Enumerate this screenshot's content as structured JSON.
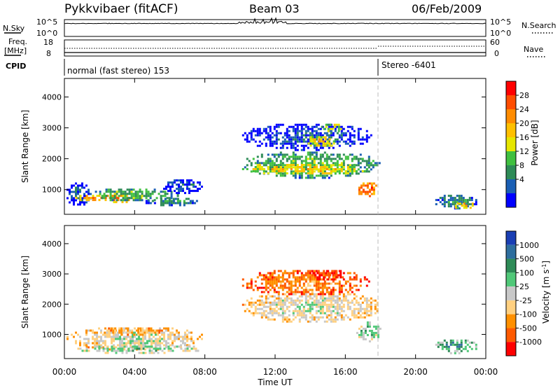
{
  "header": {
    "site": "Pykkvibaer (fitACF)",
    "beam": "Beam 03",
    "date": "06/Feb/2009"
  },
  "top_panels": {
    "nsky_label": "N.Sky",
    "nsky_ticks": [
      "10^5",
      "10^0"
    ],
    "nsearch_label": "N.Search",
    "nsearch_ticks": [
      "10^5",
      "10^0"
    ],
    "freq_label": "Freq.",
    "freq_unit": "[MHz]",
    "freq_ticks": [
      "18",
      "8"
    ],
    "nave_label": "Nave",
    "nave_ticks": [
      "60",
      "0"
    ],
    "cpid_label": "CPID",
    "cpid_mode_1": "normal (fast stereo) 153",
    "cpid_mode_2": "Stereo -6401"
  },
  "x_axis": {
    "label": "Time UT",
    "ticks": [
      "00:00",
      "04:00",
      "08:00",
      "12:00",
      "16:00",
      "20:00",
      "00:00"
    ]
  },
  "power_colorbar": {
    "label": "Power [dB]",
    "ticks": [
      "28",
      "24",
      "20",
      "16",
      "12",
      "8",
      "4"
    ],
    "colors": [
      "#ff0000",
      "#ff4d00",
      "#ff8c00",
      "#ffc000",
      "#e6e600",
      "#40c040",
      "#2e8b57",
      "#1a5fb4",
      "#0000ff"
    ]
  },
  "velocity_colorbar": {
    "label": "Velocity [m s",
    "label_sup": "-1",
    "label_end": "]",
    "ticks": [
      "1000",
      "500",
      "100",
      "25",
      "-25",
      "-100",
      "-500",
      "-1000"
    ],
    "colors": [
      "#1a3fb4",
      "#2e6e9e",
      "#2e8b57",
      "#50c878",
      "#c8c8c8",
      "#ffd080",
      "#ff9000",
      "#ff5a00",
      "#ff0000"
    ]
  },
  "chart_data": [
    {
      "type": "heatmap",
      "title": "Power",
      "xlabel": "Time UT",
      "ylabel": "Slant Range [km]",
      "xlim": [
        0,
        24
      ],
      "ylim": [
        200,
        4600
      ],
      "y_ticks": [
        "4000",
        "3000",
        "2000",
        "1000"
      ],
      "y_tick_values": [
        4000,
        3000,
        2000,
        1000
      ],
      "x_ticks": [
        0,
        4,
        8,
        12,
        16,
        20,
        24
      ],
      "regions": [
        {
          "t0": 0.0,
          "t1": 1.5,
          "r0": 500,
          "r1": 1300,
          "level": 7
        },
        {
          "t0": 0.5,
          "t1": 4.5,
          "r0": 600,
          "r1": 900,
          "level": 2
        },
        {
          "t0": 1.5,
          "t1": 6.5,
          "r0": 650,
          "r1": 1100,
          "level": 5
        },
        {
          "t0": 4.5,
          "t1": 7.5,
          "r0": 500,
          "r1": 800,
          "level": 6
        },
        {
          "t0": 5.5,
          "t1": 8.0,
          "r0": 900,
          "r1": 1400,
          "level": 7
        },
        {
          "t0": 10.0,
          "t1": 18.0,
          "r0": 1400,
          "r1": 2300,
          "level": 5
        },
        {
          "t0": 10.0,
          "t1": 17.5,
          "r0": 1500,
          "r1": 1900,
          "level": 3
        },
        {
          "t0": 10.0,
          "t1": 17.5,
          "r0": 2300,
          "r1": 3200,
          "level": 7
        },
        {
          "t0": 13.5,
          "t1": 15.5,
          "r0": 2400,
          "r1": 2800,
          "level": 3
        },
        {
          "t0": 14.5,
          "t1": 16.0,
          "r0": 2900,
          "r1": 3200,
          "level": 4
        },
        {
          "t0": 16.5,
          "t1": 17.8,
          "r0": 800,
          "r1": 1300,
          "level": 1
        },
        {
          "t0": 21.0,
          "t1": 23.5,
          "r0": 400,
          "r1": 900,
          "level": 6
        },
        {
          "t0": 22.0,
          "t1": 23.3,
          "r0": 400,
          "r1": 650,
          "level": 3
        }
      ]
    },
    {
      "type": "heatmap",
      "title": "Velocity",
      "xlabel": "Time UT",
      "ylabel": "Slant Range [km]",
      "xlim": [
        0,
        24
      ],
      "ylim": [
        200,
        4600
      ],
      "y_ticks": [
        "4000",
        "3000",
        "2000",
        "1000"
      ],
      "y_tick_values": [
        4000,
        3000,
        2000,
        1000
      ],
      "x_ticks": [
        0,
        4,
        8,
        12,
        16,
        20,
        24
      ],
      "regions": [
        {
          "t0": 0.0,
          "t1": 8.0,
          "r0": 500,
          "r1": 1300,
          "level": 4
        },
        {
          "t0": 0.5,
          "t1": 8.0,
          "r0": 400,
          "r1": 700,
          "level": 3
        },
        {
          "t0": 2.0,
          "t1": 5.5,
          "r0": 1000,
          "r1": 1300,
          "level": 5
        },
        {
          "t0": 10.0,
          "t1": 18.0,
          "r0": 1400,
          "r1": 2500,
          "level": 4
        },
        {
          "t0": 10.0,
          "t1": 17.5,
          "r0": 2300,
          "r1": 3200,
          "level": 6
        },
        {
          "t0": 14.0,
          "t1": 16.0,
          "r0": 2800,
          "r1": 3200,
          "level": 7
        },
        {
          "t0": 16.5,
          "t1": 18.0,
          "r0": 800,
          "r1": 1500,
          "level": 3
        },
        {
          "t0": 21.0,
          "t1": 23.5,
          "r0": 400,
          "r1": 900,
          "level": 2
        }
      ]
    }
  ]
}
